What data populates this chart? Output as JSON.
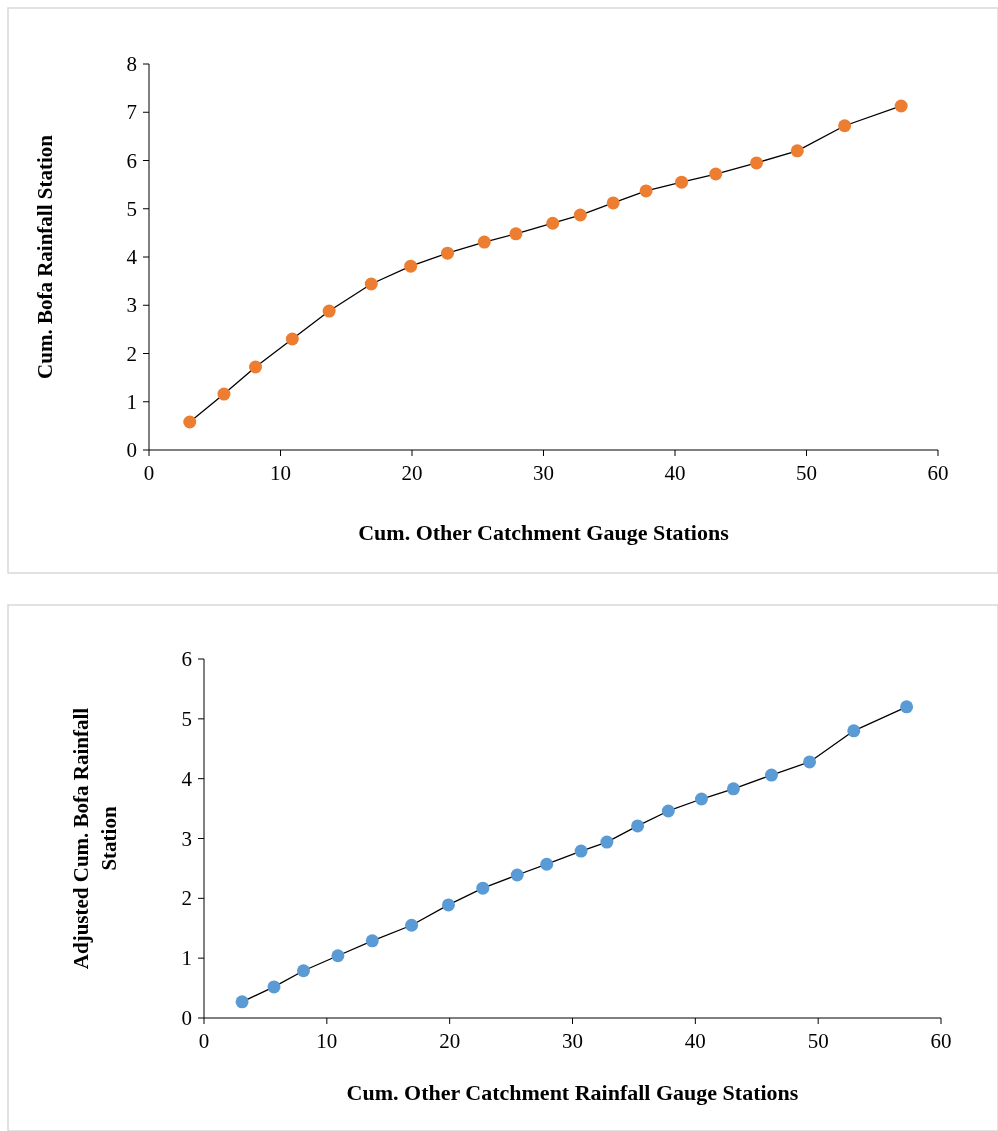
{
  "chart_data": [
    {
      "type": "line",
      "xlabel": "Cum. Other Catchment Gauge Stations",
      "ylabel": "Cum. Bofa Rainfall Station",
      "x": [
        3.1,
        5.7,
        8.1,
        10.9,
        13.7,
        16.9,
        19.9,
        22.7,
        25.5,
        27.9,
        30.7,
        32.8,
        35.3,
        37.8,
        40.5,
        43.1,
        46.2,
        49.3,
        52.9,
        57.2
      ],
      "series": [
        {
          "color": "#ed7d31",
          "values": [
            0.58,
            1.16,
            1.72,
            2.3,
            2.88,
            3.44,
            3.81,
            4.08,
            4.31,
            4.48,
            4.7,
            4.87,
            5.12,
            5.37,
            5.55,
            5.72,
            5.95,
            6.2,
            6.72,
            7.13
          ]
        }
      ],
      "xlim": [
        0,
        60
      ],
      "xticks": [
        0,
        10,
        20,
        30,
        40,
        50,
        60
      ],
      "ylim": [
        0,
        8
      ],
      "yticks": [
        0,
        1,
        2,
        3,
        4,
        5,
        6,
        7,
        8
      ],
      "grid": false,
      "marker": "circle",
      "line_style": "solid"
    },
    {
      "type": "line",
      "xlabel": "Cum. Other Catchment Rainfall Gauge Stations",
      "ylabel": "Adjusted Cum. Bofa Rainfall Station",
      "x": [
        3.1,
        5.7,
        8.1,
        10.9,
        13.7,
        16.9,
        19.9,
        22.7,
        25.5,
        27.9,
        30.7,
        32.8,
        35.3,
        37.8,
        40.5,
        43.1,
        46.2,
        49.3,
        52.9,
        57.2
      ],
      "series": [
        {
          "color": "#5b9bd5",
          "values": [
            0.27,
            0.52,
            0.79,
            1.04,
            1.29,
            1.55,
            1.89,
            2.17,
            2.39,
            2.57,
            2.79,
            2.94,
            3.21,
            3.46,
            3.66,
            3.83,
            4.06,
            4.28,
            4.8,
            5.2
          ]
        }
      ],
      "xlim": [
        0,
        60
      ],
      "xticks": [
        0,
        10,
        20,
        30,
        40,
        50,
        60
      ],
      "ylim": [
        0,
        6
      ],
      "yticks": [
        0,
        1,
        2,
        3,
        4,
        5,
        6
      ],
      "grid": false,
      "marker": "circle",
      "line_style": "solid"
    }
  ]
}
